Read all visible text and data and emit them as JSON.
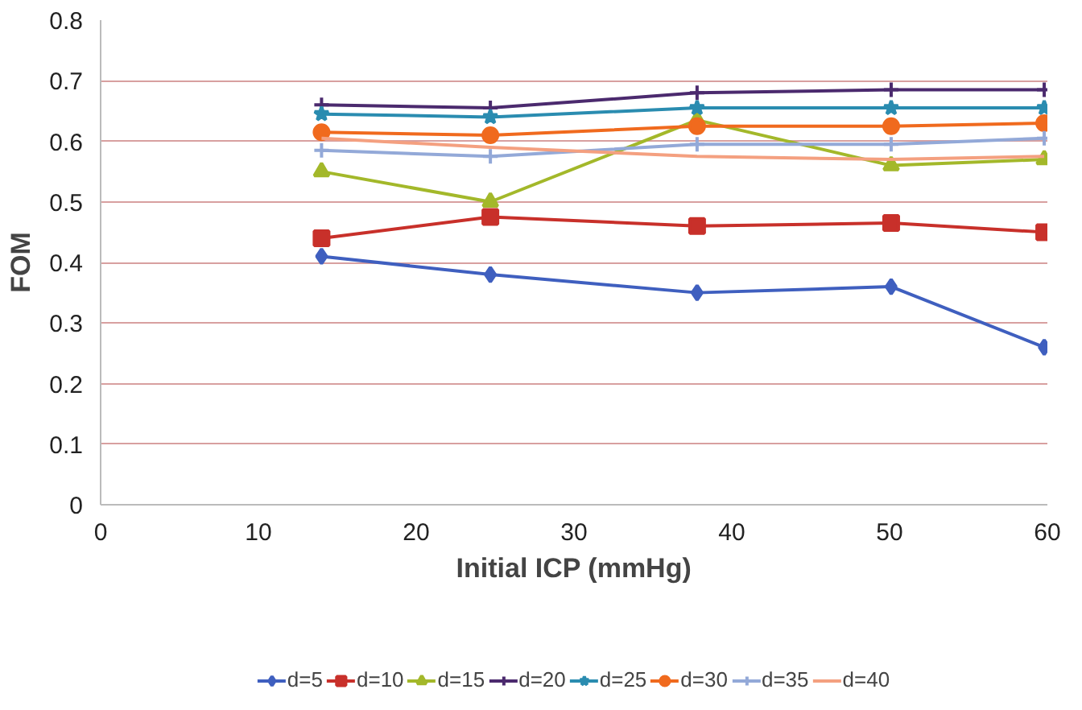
{
  "chart_data": {
    "type": "line",
    "xlabel": "Initial ICP (mmHg)",
    "ylabel": "FOM",
    "x": [
      14,
      24.7,
      37.8,
      50.1,
      59.8
    ],
    "xlim": [
      0,
      60
    ],
    "xticks": [
      0,
      10,
      20,
      30,
      40,
      50,
      60
    ],
    "ylim": [
      0,
      0.8
    ],
    "yticks": [
      0,
      0.1,
      0.2,
      0.3,
      0.4,
      0.5,
      0.6,
      0.7,
      0.8
    ],
    "grid": "y",
    "legend": "bottom",
    "series": [
      {
        "name": "d=5",
        "color": "#3f5fbf",
        "marker": "diamond",
        "values": [
          0.41,
          0.38,
          0.35,
          0.36,
          0.26
        ]
      },
      {
        "name": "d=10",
        "color": "#c8302a",
        "marker": "square",
        "values": [
          0.44,
          0.475,
          0.46,
          0.465,
          0.45
        ]
      },
      {
        "name": "d=15",
        "color": "#a3b82a",
        "marker": "triangle",
        "values": [
          0.55,
          0.5,
          0.635,
          0.56,
          0.57
        ]
      },
      {
        "name": "d=20",
        "color": "#4b2a6e",
        "marker": "cross",
        "values": [
          0.66,
          0.655,
          0.68,
          0.685,
          0.685
        ]
      },
      {
        "name": "d=25",
        "color": "#2a8cb0",
        "marker": "star",
        "values": [
          0.645,
          0.64,
          0.655,
          0.655,
          0.655
        ]
      },
      {
        "name": "d=30",
        "color": "#f06a1e",
        "marker": "circle",
        "values": [
          0.615,
          0.61,
          0.625,
          0.625,
          0.63
        ]
      },
      {
        "name": "d=35",
        "color": "#93a9d8",
        "marker": "cross",
        "values": [
          0.585,
          0.575,
          0.595,
          0.595,
          0.605
        ]
      },
      {
        "name": "d=40",
        "color": "#f4a080",
        "marker": "none",
        "values": [
          0.605,
          0.59,
          0.575,
          0.57,
          0.575
        ]
      }
    ]
  }
}
